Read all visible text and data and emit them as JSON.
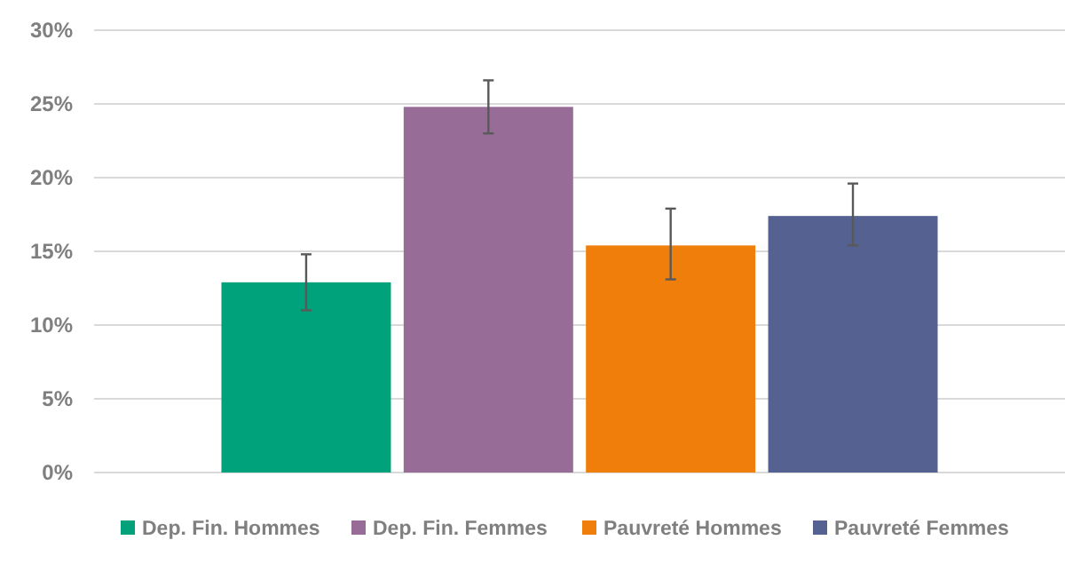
{
  "chart_data": {
    "type": "bar",
    "categories": [
      null
    ],
    "series": [
      {
        "name": "Dep. Fin. Hommes",
        "color": "#00a27b",
        "values": [
          12.9
        ],
        "errors": [
          [
            11.0,
            14.8
          ]
        ]
      },
      {
        "name": "Dep. Fin. Femmes",
        "color": "#976d98",
        "values": [
          24.8
        ],
        "errors": [
          [
            23.0,
            26.6
          ]
        ]
      },
      {
        "name": "Pauvreté Hommes",
        "color": "#ef7f0a",
        "values": [
          15.4
        ],
        "errors": [
          [
            13.1,
            17.9
          ]
        ]
      },
      {
        "name": "Pauvreté Femmes",
        "color": "#546191",
        "values": [
          17.4
        ],
        "errors": [
          [
            15.4,
            19.6
          ]
        ]
      }
    ],
    "ylim": [
      0,
      30
    ],
    "yticks": [
      {
        "value": 0,
        "label": "0%"
      },
      {
        "value": 5,
        "label": "5%"
      },
      {
        "value": 10,
        "label": "10%"
      },
      {
        "value": 15,
        "label": "15%"
      },
      {
        "value": 20,
        "label": "20%"
      },
      {
        "value": 25,
        "label": "25%"
      },
      {
        "value": 30,
        "label": "30%"
      }
    ],
    "grid": "y",
    "legend": "bottom"
  }
}
